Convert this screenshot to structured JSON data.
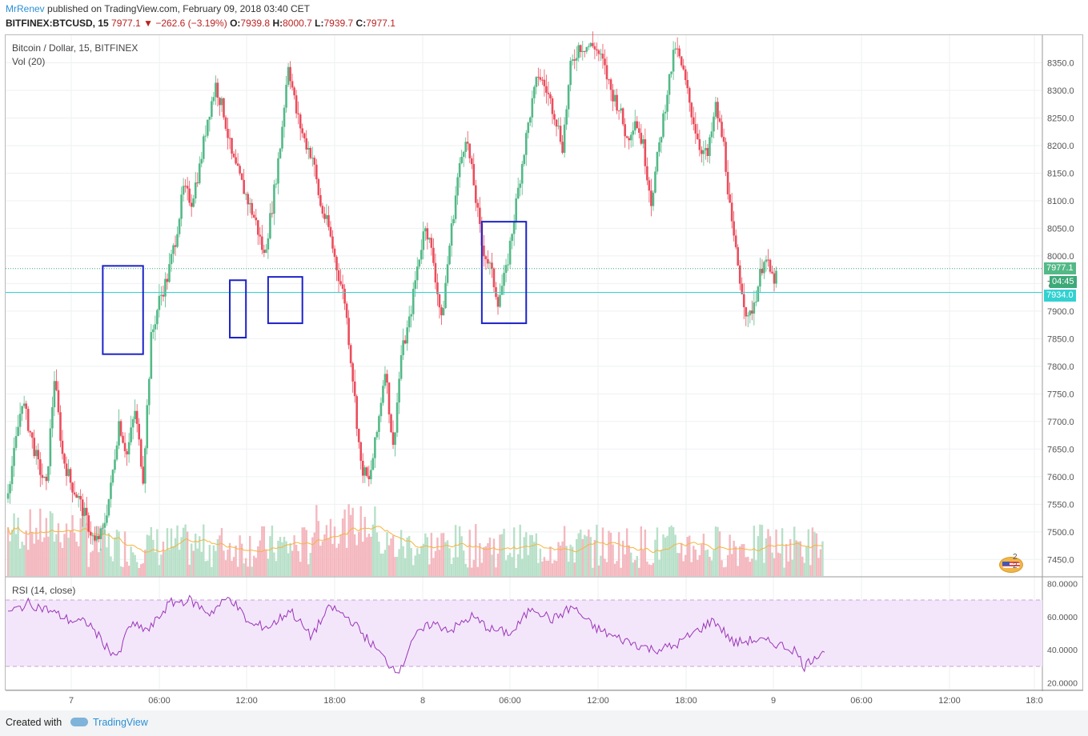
{
  "header": {
    "author": "MrRenev",
    "published": "published on TradingView.com, February 09, 2018 03:40 CET",
    "symbol_line": "BITFINEX:BTCUSD, 15",
    "last": "7977.1",
    "change_arrow": "▼",
    "change": "−262.6 (−3.19%)",
    "o_label": "O:",
    "o_val": "7939.8",
    "h_label": "H:",
    "h_val": "8000.7",
    "l_label": "L:",
    "l_val": "7939.7",
    "c_label": "C:",
    "c_val": "7977.1"
  },
  "legend": {
    "title": "Bitcoin / Dollar, 15, BITFINEX",
    "volume": "Vol (20)",
    "rsi": "RSI (14, close)"
  },
  "price_badges": {
    "last_price": "7977.1",
    "countdown": "04:45",
    "line_price": "7934.0"
  },
  "events_marker": "2 2",
  "footer": {
    "created_with": "Created with",
    "brand": "TradingView"
  },
  "colors": {
    "up": "#53b987",
    "down": "#eb4d5c",
    "up_volume": "#b8e0c9",
    "down_volume": "#f4b8bf",
    "volume_ma": "#f5b43b",
    "rsi_line": "#9b36b7",
    "rsi_band": "#f3e6fb",
    "hline": "#33d1d1",
    "box": "#1c22c8",
    "last_price_badge": "#53b987",
    "countdown_badge": "#3da979",
    "hline_badge": "#33d1d1"
  },
  "chart_data": [
    {
      "type": "candlestick",
      "title": "Bitcoin / Dollar, 15, BITFINEX",
      "xlabel": "",
      "ylabel": "",
      "x_ticks": [
        "7",
        "06:00",
        "12:00",
        "18:00",
        "8",
        "06:00",
        "12:00",
        "18:00",
        "9",
        "06:00",
        "12:00",
        "18:0"
      ],
      "y_ticks": [
        "8350.0",
        "8300.0",
        "8250.0",
        "8200.0",
        "8150.0",
        "8100.0",
        "8050.0",
        "8000.0",
        "7950.0",
        "7900.0",
        "7850.0",
        "7800.0",
        "7750.0",
        "7700.0",
        "7650.0",
        "7600.0",
        "7550.0",
        "7500.0",
        "7450.0"
      ],
      "ylim": [
        7420,
        8400
      ],
      "close_path": [
        [
          0,
          7560
        ],
        [
          4,
          7640
        ],
        [
          8,
          7740
        ],
        [
          12,
          7680
        ],
        [
          16,
          7620
        ],
        [
          20,
          7580
        ],
        [
          24,
          7780
        ],
        [
          28,
          7640
        ],
        [
          32,
          7590
        ],
        [
          36,
          7560
        ],
        [
          40,
          7520
        ],
        [
          44,
          7480
        ],
        [
          48,
          7500
        ],
        [
          52,
          7580
        ],
        [
          56,
          7700
        ],
        [
          60,
          7640
        ],
        [
          64,
          7720
        ],
        [
          68,
          7600
        ],
        [
          72,
          7850
        ],
        [
          76,
          7920
        ],
        [
          80,
          7960
        ],
        [
          84,
          8030
        ],
        [
          88,
          8120
        ],
        [
          92,
          8100
        ],
        [
          96,
          8160
        ],
        [
          100,
          8250
        ],
        [
          104,
          8310
        ],
        [
          108,
          8260
        ],
        [
          112,
          8180
        ],
        [
          116,
          8140
        ],
        [
          120,
          8100
        ],
        [
          124,
          8060
        ],
        [
          128,
          8000
        ],
        [
          132,
          8090
        ],
        [
          136,
          8200
        ],
        [
          140,
          8350
        ],
        [
          144,
          8260
        ],
        [
          148,
          8210
        ],
        [
          152,
          8180
        ],
        [
          156,
          8090
        ],
        [
          160,
          8050
        ],
        [
          164,
          7980
        ],
        [
          168,
          7920
        ],
        [
          172,
          7780
        ],
        [
          176,
          7620
        ],
        [
          180,
          7590
        ],
        [
          184,
          7680
        ],
        [
          188,
          7800
        ],
        [
          192,
          7650
        ],
        [
          196,
          7820
        ],
        [
          200,
          7880
        ],
        [
          204,
          7980
        ],
        [
          208,
          8060
        ],
        [
          212,
          7990
        ],
        [
          216,
          7880
        ],
        [
          220,
          8020
        ],
        [
          224,
          8140
        ],
        [
          228,
          8220
        ],
        [
          232,
          8130
        ],
        [
          236,
          8020
        ],
        [
          240,
          7980
        ],
        [
          244,
          7920
        ],
        [
          248,
          7970
        ],
        [
          252,
          8070
        ],
        [
          256,
          8170
        ],
        [
          260,
          8260
        ],
        [
          264,
          8330
        ],
        [
          268,
          8300
        ],
        [
          272,
          8260
        ],
        [
          276,
          8200
        ],
        [
          280,
          8340
        ],
        [
          284,
          8380
        ],
        [
          288,
          8380
        ],
        [
          292,
          8380
        ],
        [
          296,
          8350
        ],
        [
          300,
          8300
        ],
        [
          304,
          8270
        ],
        [
          308,
          8210
        ],
        [
          312,
          8250
        ],
        [
          316,
          8200
        ],
        [
          320,
          8100
        ],
        [
          324,
          8200
        ],
        [
          328,
          8300
        ],
        [
          332,
          8380
        ],
        [
          336,
          8330
        ],
        [
          340,
          8260
        ],
        [
          344,
          8200
        ],
        [
          348,
          8180
        ],
        [
          352,
          8270
        ],
        [
          356,
          8200
        ],
        [
          360,
          8050
        ],
        [
          364,
          7960
        ],
        [
          368,
          7880
        ],
        [
          372,
          7930
        ],
        [
          376,
          8000
        ],
        [
          380,
          7960
        ]
      ],
      "horizontal_line": 7934.0,
      "last_price": 7977.1,
      "boxes_time_price": [
        {
          "t0": 47,
          "t1": 67,
          "p0": 7822,
          "p1": 7982
        },
        {
          "t0": 110,
          "t1": 118,
          "p0": 7852,
          "p1": 7956
        },
        {
          "t0": 129,
          "t1": 146,
          "p0": 7878,
          "p1": 7962
        },
        {
          "t0": 235,
          "t1": 257,
          "p0": 7878,
          "p1": 8062
        }
      ]
    },
    {
      "type": "line",
      "title": "RSI (14, close)",
      "y_ticks": [
        "80.0000",
        "60.0000",
        "40.0000",
        "20.0000"
      ],
      "ylim": [
        16,
        84
      ],
      "band": [
        30,
        70
      ],
      "rsi_path": [
        [
          0,
          62
        ],
        [
          10,
          68
        ],
        [
          20,
          64
        ],
        [
          30,
          58
        ],
        [
          40,
          56
        ],
        [
          50,
          40
        ],
        [
          55,
          36
        ],
        [
          60,
          55
        ],
        [
          70,
          52
        ],
        [
          80,
          68
        ],
        [
          90,
          70
        ],
        [
          100,
          62
        ],
        [
          110,
          72
        ],
        [
          120,
          55
        ],
        [
          130,
          54
        ],
        [
          140,
          64
        ],
        [
          150,
          48
        ],
        [
          160,
          66
        ],
        [
          170,
          58
        ],
        [
          180,
          44
        ],
        [
          190,
          30
        ],
        [
          195,
          28
        ],
        [
          200,
          46
        ],
        [
          210,
          56
        ],
        [
          220,
          52
        ],
        [
          230,
          60
        ],
        [
          240,
          52
        ],
        [
          250,
          50
        ],
        [
          260,
          66
        ],
        [
          270,
          58
        ],
        [
          280,
          66
        ],
        [
          290,
          54
        ],
        [
          300,
          48
        ],
        [
          310,
          44
        ],
        [
          320,
          40
        ],
        [
          330,
          42
        ],
        [
          340,
          50
        ],
        [
          350,
          58
        ],
        [
          360,
          44
        ],
        [
          370,
          46
        ],
        [
          380,
          44
        ],
        [
          390,
          40
        ],
        [
          395,
          30
        ],
        [
          400,
          36
        ],
        [
          405,
          40
        ]
      ]
    }
  ]
}
